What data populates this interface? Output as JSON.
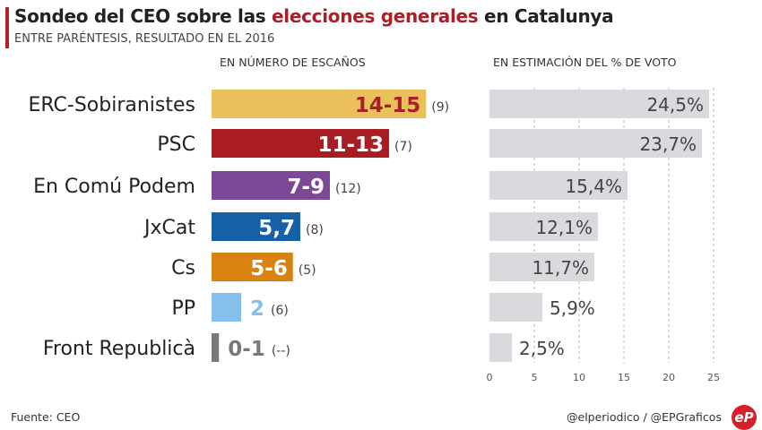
{
  "header": {
    "title_pre": "Sondeo del CEO sobre las ",
    "title_hl": "elecciones generales",
    "title_post": " en Catalunya",
    "subtitle": "ENTRE PARÉNTESIS, RESULTADO EN EL 2016"
  },
  "chart_data": [
    {
      "type": "bar",
      "title": "EN NÚMERO DE ESCAÑOS",
      "orientation": "horizontal",
      "categories": [
        "ERC-Sobiranistes",
        "PSC",
        "En Comú Podem",
        "JxCat",
        "Cs",
        "PP",
        "Front Republicà"
      ],
      "labels": [
        "14-15",
        "11-13",
        "7-9",
        "5,7",
        "5-6",
        "2",
        "0-1"
      ],
      "values": [
        14.5,
        12,
        8,
        6,
        5.5,
        2,
        0.5
      ],
      "previous_labels": [
        "(9)",
        "(7)",
        "(12)",
        "(8)",
        "(5)",
        "(6)",
        "(--)"
      ],
      "colors": [
        "#e9c05a",
        "#a81c22",
        "#7d4896",
        "#1660a8",
        "#d9820f",
        "#85bfea",
        "#787878"
      ],
      "label_colors": [
        "#a8202a",
        "#ffffff",
        "#ffffff",
        "#ffffff",
        "#ffffff",
        "#85bfea",
        "#787878"
      ],
      "labels_inside": [
        true,
        true,
        true,
        true,
        true,
        false,
        false
      ]
    },
    {
      "type": "bar",
      "title": "EN ESTIMACIÓN DEL % DE VOTO",
      "orientation": "horizontal",
      "categories": [
        "ERC-Sobiranistes",
        "PSC",
        "En Comú Podem",
        "JxCat",
        "Cs",
        "PP",
        "Front Republicà"
      ],
      "values": [
        24.5,
        23.7,
        15.4,
        12.1,
        11.7,
        5.9,
        2.5
      ],
      "value_labels": [
        "24,5%",
        "23,7%",
        "15,4%",
        "12,1%",
        "11,7%",
        "5,9%",
        "2,5%"
      ],
      "xlim": [
        0,
        25
      ],
      "ticks": [
        "0",
        "5",
        "10",
        "15",
        "20",
        "25"
      ],
      "grid": "dashed vertical",
      "color": "#d9d9de"
    }
  ],
  "footer": {
    "source": "Fuente: CEO",
    "credit": "@elperiodico / @EPGraficos",
    "logo": "eP"
  }
}
